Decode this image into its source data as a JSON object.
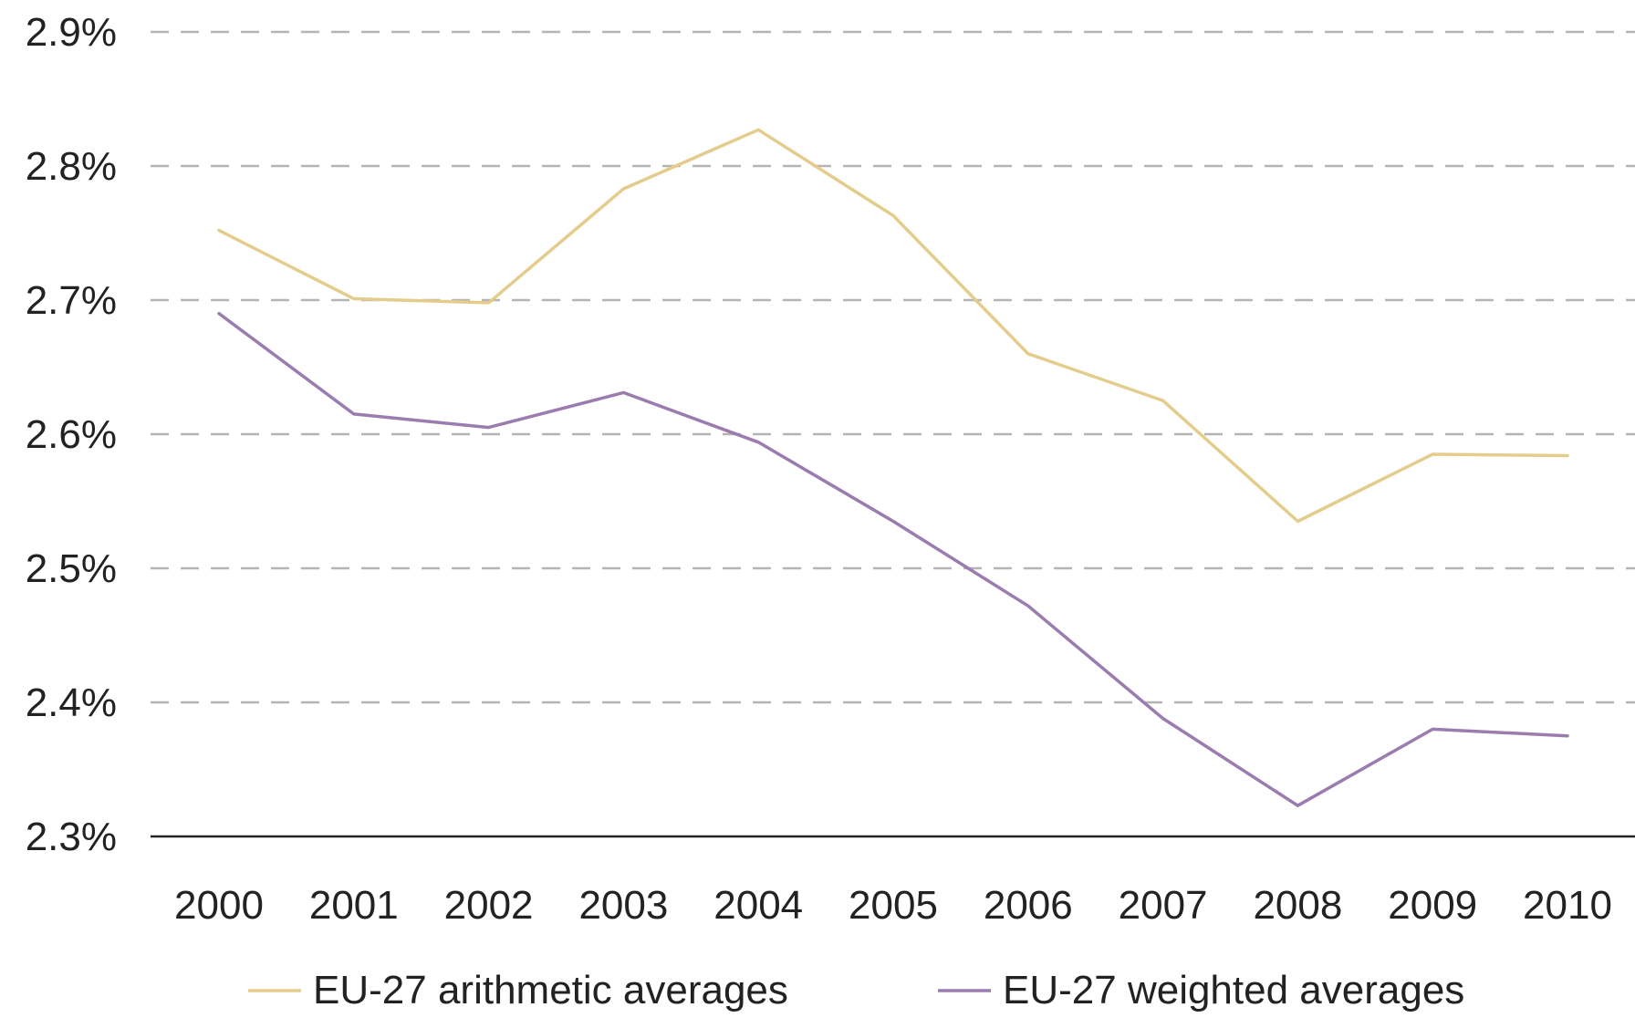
{
  "chart_data": {
    "type": "line",
    "x": [
      "2000",
      "2001",
      "2002",
      "2003",
      "2004",
      "2005",
      "2006",
      "2007",
      "2008",
      "2009",
      "2010"
    ],
    "series": [
      {
        "name": "EU-27 arithmetic averages",
        "color": "#e3cc8c",
        "values": [
          2.752,
          2.701,
          2.698,
          2.783,
          2.827,
          2.763,
          2.66,
          2.625,
          2.535,
          2.585,
          2.584
        ]
      },
      {
        "name": "EU-27 weighted averages",
        "color": "#9b7cae",
        "values": [
          2.69,
          2.615,
          2.605,
          2.631,
          2.594,
          2.535,
          2.472,
          2.388,
          2.323,
          2.38,
          2.375
        ]
      }
    ],
    "y_ticks": [
      "2.3%",
      "2.4%",
      "2.5%",
      "2.6%",
      "2.7%",
      "2.8%",
      "2.9%"
    ],
    "y_tick_values": [
      2.3,
      2.4,
      2.5,
      2.6,
      2.7,
      2.8,
      2.9
    ],
    "ylim": [
      2.3,
      2.9
    ],
    "title": "",
    "xlabel": "",
    "ylabel": "",
    "grid": "horizontal-dashed",
    "legend_position": "bottom-center"
  }
}
